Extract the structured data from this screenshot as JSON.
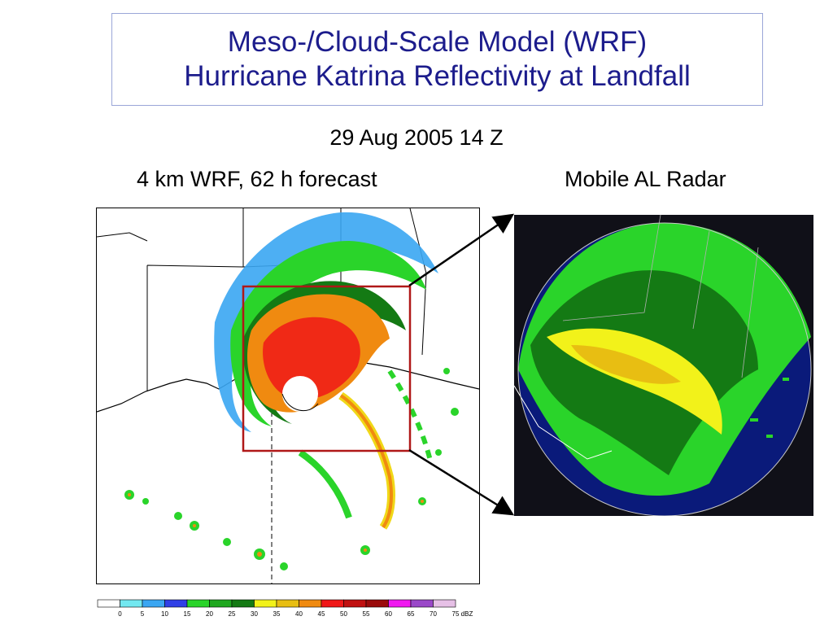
{
  "slide": {
    "title_line1": "Meso-/Cloud-Scale Model (WRF)",
    "title_line2": "Hurricane Katrina Reflectivity at Landfall",
    "subtitle": "29 Aug 2005 14 Z",
    "left_label": "4 km WRF, 62 h forecast",
    "right_label": "Mobile AL Radar"
  },
  "colorbar": {
    "unit": "dBZ",
    "ticks": [
      "0",
      "5",
      "10",
      "15",
      "20",
      "25",
      "30",
      "35",
      "40",
      "45",
      "50",
      "55",
      "60",
      "65",
      "70",
      "75"
    ],
    "colors": [
      "#ffffff",
      "#72e8f0",
      "#3aa6f2",
      "#3040e6",
      "#2ad42a",
      "#1fa81f",
      "#147a14",
      "#f2f21a",
      "#e8be12",
      "#f08a10",
      "#f01818",
      "#c01010",
      "#9a0a0a",
      "#f018f0",
      "#9a48c8",
      "#e6c0e6"
    ]
  },
  "colors": {
    "title_text": "#1c1c8c",
    "title_border": "#9aa6d8",
    "zoom_box": "#b01818"
  }
}
